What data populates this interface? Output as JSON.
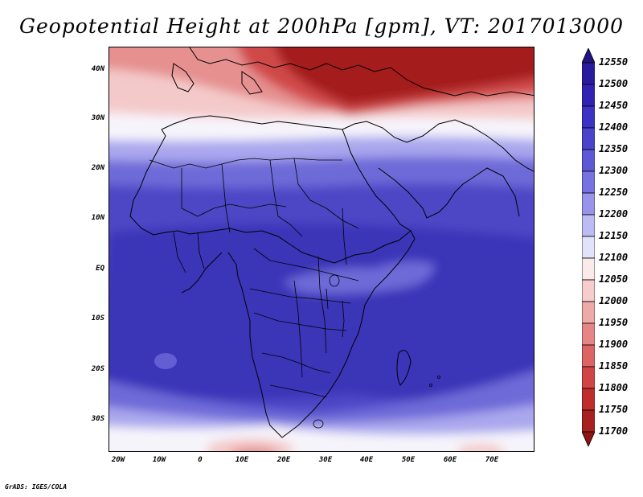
{
  "title": "Geopotential Height at 200hPa [gpm], VT: 2017013000",
  "footer": "GrADS: IGES/COLA",
  "axes": {
    "lat_labels": [
      "40N",
      "30N",
      "20N",
      "10N",
      "EQ",
      "10S",
      "20S",
      "30S"
    ],
    "lon_labels": [
      "20W",
      "10W",
      "0",
      "10E",
      "20E",
      "30E",
      "40E",
      "50E",
      "60E",
      "70E"
    ],
    "lat_range": [
      -37,
      44.5
    ],
    "lon_range": [
      -22,
      80
    ]
  },
  "colorbar": {
    "levels": [
      "12550",
      "12500",
      "12450",
      "12400",
      "12350",
      "12300",
      "12250",
      "12200",
      "12150",
      "12100",
      "12050",
      "12000",
      "11950",
      "11900",
      "11850",
      "11800",
      "11750",
      "11700"
    ],
    "colors": [
      "#211480",
      "#2a1a9e",
      "#3023b4",
      "#3a33c4",
      "#4a44cc",
      "#5c58d6",
      "#7673e0",
      "#9794ea",
      "#bdbbf4",
      "#e3e2fb",
      "#fbeaea",
      "#f6cccc",
      "#eea9a9",
      "#e68585",
      "#dc6464",
      "#d04646",
      "#bf2d2d",
      "#a82020",
      "#8c1414"
    ]
  },
  "field_colors": {
    "deep_blue": "#3b34b8",
    "mid_blue": "#4d46c6",
    "light_blue": "#6e6ad8",
    "pale_blue": "#aaa7ee",
    "white": "#f6f4fb",
    "pale_red": "#f4c9c9",
    "light_red": "#e69090",
    "mid_red": "#d04848",
    "deep_red": "#a41a1a"
  }
}
